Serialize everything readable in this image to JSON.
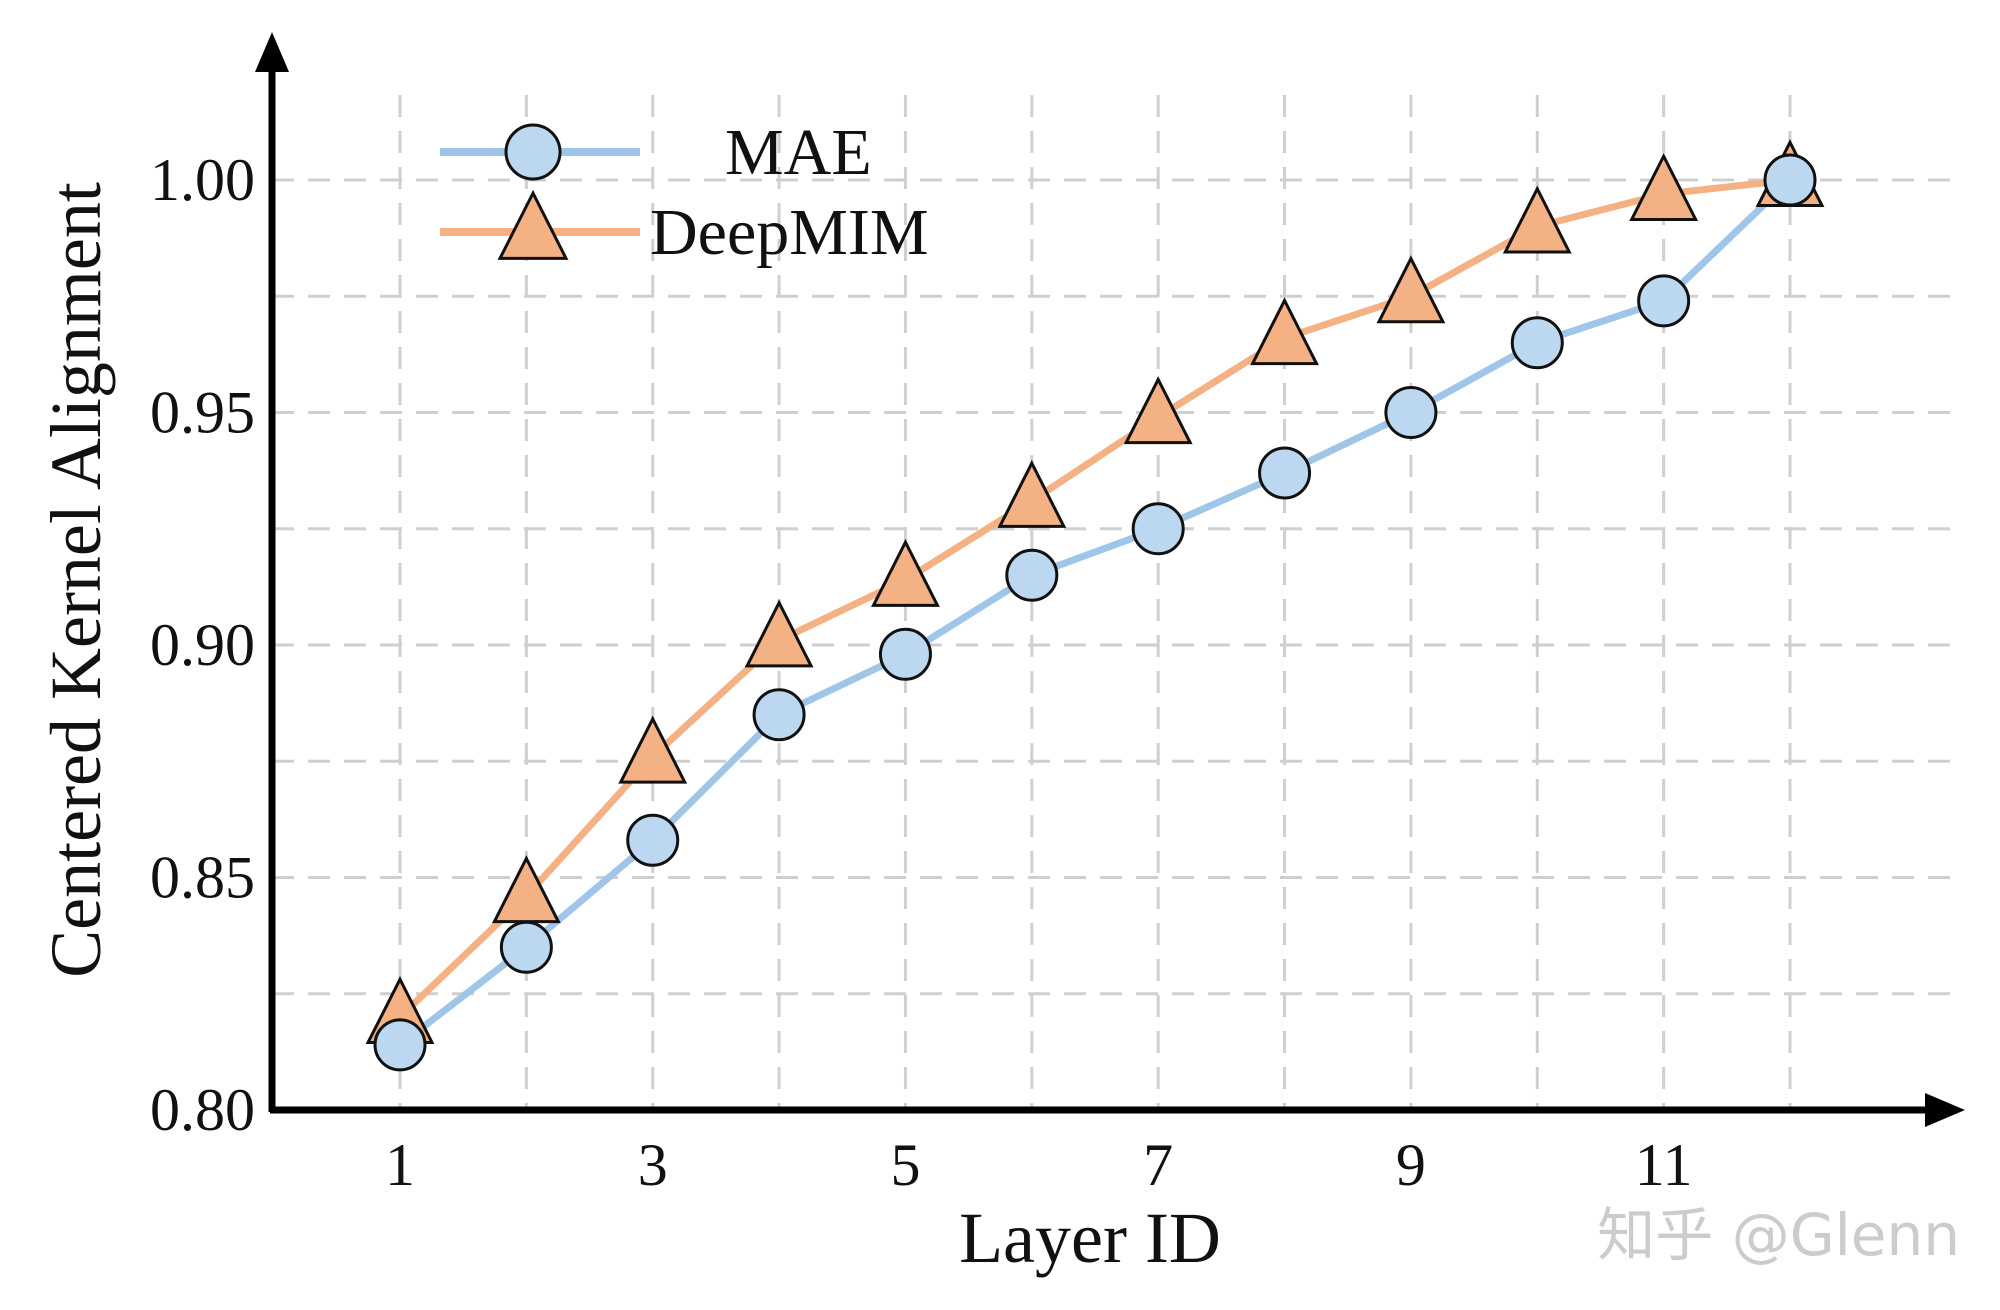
{
  "chart_data": {
    "type": "line",
    "xlabel": "Layer ID",
    "ylabel": "Centered Kernel Alignment",
    "x": [
      1,
      2,
      3,
      4,
      5,
      6,
      7,
      8,
      9,
      10,
      11,
      12
    ],
    "xticks": [
      1,
      3,
      5,
      7,
      9,
      11
    ],
    "xlim": [
      0,
      13
    ],
    "yticks": [
      0.8,
      0.85,
      0.9,
      0.95,
      1.0
    ],
    "ytick_labels": [
      "0.80",
      "0.85",
      "0.90",
      "0.95",
      "1.00"
    ],
    "ylim": [
      0.8,
      1.02
    ],
    "grid": true,
    "legend_position": "top-left",
    "series": [
      {
        "name": "MAE",
        "marker": "circle",
        "color": "#9fc5e8",
        "marker_fill": "#bcd8f0",
        "values": [
          0.814,
          0.835,
          0.858,
          0.885,
          0.898,
          0.915,
          0.925,
          0.937,
          0.95,
          0.965,
          0.974,
          1.0
        ]
      },
      {
        "name": "DeepMIM",
        "marker": "triangle",
        "color": "#f4b183",
        "marker_fill": "#f4b183",
        "values": [
          0.82,
          0.846,
          0.876,
          0.901,
          0.914,
          0.931,
          0.949,
          0.966,
          0.975,
          0.99,
          0.997,
          1.0
        ]
      }
    ]
  },
  "watermark": "知乎 @Glenn"
}
